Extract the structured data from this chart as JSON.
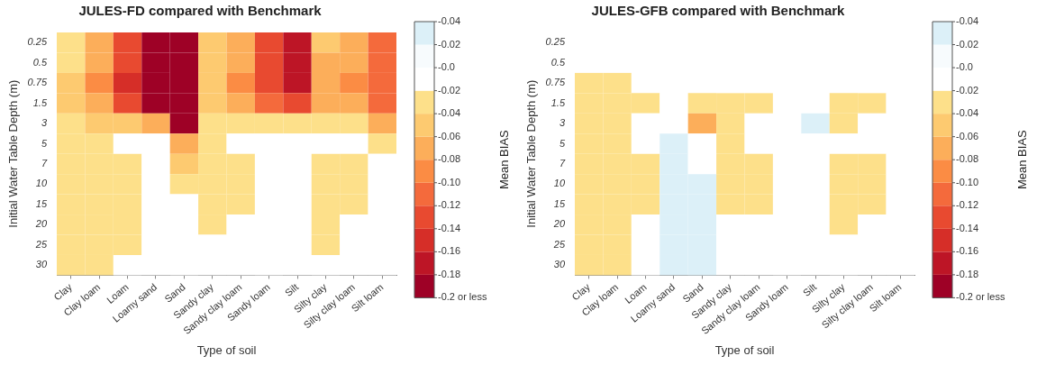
{
  "chart_data": [
    {
      "type": "heatmap",
      "title": "JULES-FD compared with Benchmark",
      "xlabel": "Type of soil",
      "ylabel": "Initial Water Table Depth (m)",
      "clabel": "Mean BIAS",
      "categories": [
        "Clay",
        "Clay loam",
        "Loam",
        "Loamy sand",
        "Sand",
        "Sandy clay",
        "Sandy clay loam",
        "Sandy loam",
        "Silt",
        "Silty clay",
        "Silty clay loam",
        "Silt loam"
      ],
      "y_categories": [
        "0.25",
        "0.5",
        "0.75",
        "1.5",
        "3",
        "5",
        "7",
        "10",
        "15",
        "20",
        "25",
        "30"
      ],
      "cells": [
        [
          -0.03,
          -0.07,
          -0.13,
          -0.19,
          -0.19,
          -0.05,
          -0.07,
          -0.13,
          -0.17,
          -0.05,
          -0.07,
          -0.11
        ],
        [
          -0.03,
          -0.07,
          -0.13,
          -0.19,
          -0.19,
          -0.05,
          -0.07,
          -0.13,
          -0.17,
          -0.07,
          -0.07,
          -0.11
        ],
        [
          -0.05,
          -0.09,
          -0.15,
          -0.19,
          -0.19,
          -0.05,
          -0.09,
          -0.13,
          -0.17,
          -0.07,
          -0.09,
          -0.11
        ],
        [
          -0.05,
          -0.07,
          -0.13,
          -0.19,
          -0.19,
          -0.05,
          -0.07,
          -0.11,
          -0.13,
          -0.07,
          -0.07,
          -0.11
        ],
        [
          -0.03,
          -0.05,
          -0.05,
          -0.07,
          -0.19,
          -0.03,
          -0.03,
          -0.03,
          -0.03,
          -0.03,
          -0.03,
          -0.07
        ],
        [
          -0.03,
          -0.03,
          -0.01,
          -0.01,
          -0.07,
          -0.03,
          -0.01,
          -0.01,
          -0.01,
          -0.01,
          -0.01,
          -0.03
        ],
        [
          -0.03,
          -0.03,
          -0.03,
          -0.01,
          -0.05,
          -0.03,
          -0.03,
          -0.01,
          -0.01,
          -0.03,
          -0.03,
          -0.01
        ],
        [
          -0.03,
          -0.03,
          -0.03,
          -0.01,
          -0.03,
          -0.03,
          -0.03,
          -0.01,
          -0.01,
          -0.03,
          -0.03,
          -0.01
        ],
        [
          -0.03,
          -0.03,
          -0.03,
          -0.01,
          -0.01,
          -0.03,
          -0.03,
          -0.01,
          -0.01,
          -0.03,
          -0.03,
          -0.01
        ],
        [
          -0.03,
          -0.03,
          -0.03,
          -0.01,
          -0.01,
          -0.03,
          -0.01,
          -0.01,
          -0.01,
          -0.03,
          -0.01,
          -0.01
        ],
        [
          -0.03,
          -0.03,
          -0.03,
          -0.01,
          -0.01,
          -0.01,
          -0.01,
          -0.01,
          -0.01,
          -0.03,
          -0.01,
          -0.01
        ],
        [
          -0.03,
          -0.03,
          -0.01,
          -0.01,
          -0.01,
          -0.01,
          -0.01,
          -0.01,
          -0.01,
          -0.01,
          -0.01,
          -0.01
        ]
      ],
      "clim": [
        -0.2,
        0.04
      ],
      "annotations": [
        "-0.04",
        "-0.02"
      ],
      "cticks": [
        {
          "value": 0.04,
          "label": null
        },
        {
          "value": 0.02,
          "label": null
        },
        {
          "value": 0,
          "label": "-0.0"
        },
        {
          "value": -0.02,
          "label": "-0.02"
        },
        {
          "value": -0.04,
          "label": "-0.04"
        },
        {
          "value": -0.06,
          "label": "-0.06"
        },
        {
          "value": -0.08,
          "label": "-0.08"
        },
        {
          "value": -0.1,
          "label": "-0.10"
        },
        {
          "value": -0.12,
          "label": "-0.12"
        },
        {
          "value": -0.14,
          "label": "-0.14"
        },
        {
          "value": -0.16,
          "label": "-0.16"
        },
        {
          "value": -0.18,
          "label": "-0.18"
        },
        {
          "value": -0.2,
          "label": "-0.2 or less"
        }
      ]
    },
    {
      "type": "heatmap",
      "title": "JULES-GFB compared with Benchmark",
      "xlabel": "Type of soil",
      "ylabel": "Initial Water Table Depth (m)",
      "clabel": "Mean BIAS",
      "categories": [
        "Clay",
        "Clay loam",
        "Loam",
        "Loamy sand",
        "Sand",
        "Sandy clay",
        "Sandy clay loam",
        "Sandy loam",
        "Silt",
        "Silty clay",
        "Silty clay loam",
        "Silt loam"
      ],
      "y_categories": [
        "0.25",
        "0.5",
        "0.75",
        "1.5",
        "3",
        "5",
        "7",
        "10",
        "15",
        "20",
        "25",
        "30"
      ],
      "cells": [
        [
          -0.01,
          -0.01,
          -0.01,
          -0.01,
          -0.01,
          -0.01,
          -0.01,
          -0.01,
          -0.01,
          -0.01,
          -0.01,
          -0.01
        ],
        [
          -0.01,
          -0.01,
          -0.01,
          -0.01,
          -0.01,
          -0.01,
          -0.01,
          -0.01,
          -0.01,
          -0.01,
          -0.01,
          -0.01
        ],
        [
          -0.03,
          -0.03,
          -0.01,
          -0.01,
          -0.01,
          -0.01,
          -0.01,
          -0.01,
          -0.01,
          -0.01,
          -0.01,
          -0.01
        ],
        [
          -0.03,
          -0.03,
          -0.03,
          -0.01,
          -0.03,
          -0.03,
          -0.03,
          -0.01,
          -0.01,
          -0.03,
          -0.03,
          -0.01
        ],
        [
          -0.03,
          -0.03,
          -0.01,
          -0.01,
          -0.07,
          -0.03,
          -0.01,
          -0.01,
          0.03,
          -0.03,
          -0.01,
          -0.01
        ],
        [
          -0.03,
          -0.03,
          -0.01,
          0.03,
          -0.01,
          -0.03,
          -0.01,
          -0.01,
          -0.01,
          -0.01,
          -0.01,
          -0.01
        ],
        [
          -0.03,
          -0.03,
          -0.03,
          0.03,
          -0.01,
          -0.03,
          -0.03,
          -0.01,
          -0.01,
          -0.03,
          -0.03,
          -0.01
        ],
        [
          -0.03,
          -0.03,
          -0.03,
          0.03,
          0.03,
          -0.03,
          -0.03,
          -0.01,
          -0.01,
          -0.03,
          -0.03,
          -0.01
        ],
        [
          -0.03,
          -0.03,
          -0.03,
          0.03,
          0.03,
          -0.03,
          -0.03,
          -0.01,
          -0.01,
          -0.03,
          -0.03,
          -0.01
        ],
        [
          -0.03,
          -0.03,
          -0.01,
          0.03,
          0.03,
          -0.01,
          -0.01,
          -0.01,
          -0.01,
          -0.03,
          -0.01,
          -0.01
        ],
        [
          -0.03,
          -0.03,
          -0.01,
          0.03,
          0.03,
          -0.01,
          -0.01,
          -0.01,
          -0.01,
          -0.01,
          -0.01,
          -0.01
        ],
        [
          -0.03,
          -0.03,
          -0.01,
          0.03,
          0.03,
          -0.01,
          -0.01,
          -0.01,
          -0.01,
          -0.01,
          -0.01,
          -0.01
        ]
      ],
      "clim": [
        -0.2,
        0.04
      ],
      "annotations": [
        "-0.04",
        "-0.02"
      ],
      "cticks": [
        {
          "value": 0.04,
          "label": null
        },
        {
          "value": 0.02,
          "label": null
        },
        {
          "value": 0,
          "label": "-0.0"
        },
        {
          "value": -0.02,
          "label": "-0.02"
        },
        {
          "value": -0.04,
          "label": "-0.04"
        },
        {
          "value": -0.06,
          "label": "-0.06"
        },
        {
          "value": -0.08,
          "label": "-0.08"
        },
        {
          "value": -0.1,
          "label": "-0.10"
        },
        {
          "value": -0.12,
          "label": "-0.12"
        },
        {
          "value": -0.14,
          "label": "-0.14"
        },
        {
          "value": -0.16,
          "label": "-0.16"
        },
        {
          "value": -0.18,
          "label": "-0.18"
        },
        {
          "value": -0.2,
          "label": "-0.2 or less"
        }
      ]
    }
  ]
}
